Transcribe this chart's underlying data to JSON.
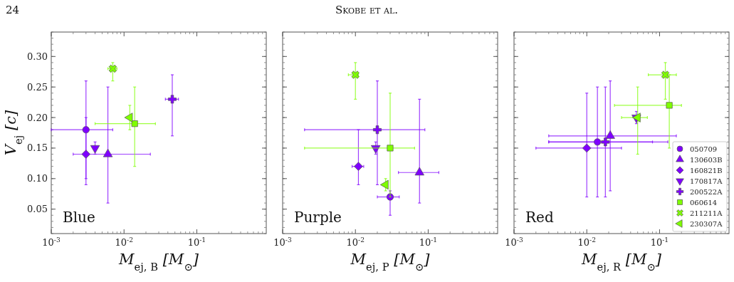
{
  "chart_data": [
    {
      "type": "scatter",
      "xlabel": "M$_{ej, B}$ [M$_{⊙}$]",
      "ylabel": "V$_{ej}$ [c]",
      "annotations": [
        "Blue",
        "24",
        "Skobe et al."
      ],
      "log": "x",
      "xlim": [
        0.001,
        0.9
      ],
      "ylim": [
        0.01,
        0.34
      ],
      "xticks": [
        {
          "value": 0.001,
          "label": "10$^{-3}$"
        },
        {
          "value": 0.01,
          "label": "10$^{-2}$"
        },
        {
          "value": 0.1,
          "label": "10$^{-1}$"
        }
      ],
      "yticks": [
        {
          "value": 0.05,
          "label": "0.05"
        },
        {
          "value": 0.1,
          "label": "0.10"
        },
        {
          "value": 0.15,
          "label": "0.15"
        },
        {
          "value": 0.2,
          "label": "0.20"
        },
        {
          "value": 0.25,
          "label": "0.25"
        },
        {
          "value": 0.3,
          "label": "0.30"
        }
      ],
      "series": [
        {
          "color": "#7f00ff",
          "marker": "circle",
          "x": [
            0.003
          ],
          "values": [
            0.18
          ],
          "errors": [
            [
              0.1,
              0.26
            ]
          ],
          "xerrors": [
            [
              0.001,
              0.007
            ]
          ]
        },
        {
          "color": "#7f00ff",
          "marker": "triangle",
          "x": [
            0.006
          ],
          "values": [
            0.14
          ],
          "errors": [
            [
              0.06,
              0.25
            ]
          ]
        },
        {
          "color": "#7f00ff",
          "marker": "diamond",
          "x": [
            0.003
          ],
          "values": [
            0.14
          ],
          "errors": [
            [
              0.09,
              0.2
            ]
          ],
          "xerrors": [
            [
              0.002,
              0.023
            ]
          ]
        },
        {
          "color": "#7f00ff",
          "marker": "triangle-down",
          "x": [
            0.004
          ],
          "values": [
            0.15
          ],
          "errors": [
            [
              0.14,
              0.16
            ]
          ]
        },
        {
          "color": "#7f00ff",
          "marker": "cross",
          "x": [
            0.046
          ],
          "values": [
            0.23
          ],
          "errors": [
            [
              0.17,
              0.27
            ]
          ],
          "xerrors": [
            [
              0.037,
              0.056
            ]
          ]
        },
        {
          "color": "#7fff00",
          "marker": "square",
          "x": [
            0.014
          ],
          "values": [
            0.19
          ],
          "errors": [
            [
              0.12,
              0.25
            ]
          ],
          "xerrors": [
            [
              0.004,
              0.027
            ]
          ]
        },
        {
          "color": "#7fff00",
          "marker": "x",
          "x": [
            0.007
          ],
          "values": [
            0.28
          ],
          "errors": [
            [
              0.26,
              0.29
            ]
          ],
          "xerrors": [
            [
              0.006,
              0.008
            ]
          ]
        },
        {
          "color": "#7fff00",
          "marker": "triangle-left",
          "x": [
            0.012
          ],
          "values": [
            0.2
          ],
          "errors": [
            [
              0.18,
              0.22
            ]
          ]
        }
      ]
    },
    {
      "type": "scatter",
      "xlabel": "M$_{ej, P}$ [M$_{⊙}$]",
      "annotations": [
        "Purple"
      ],
      "log": "x",
      "tick_labels": "x",
      "xlim": [
        0.001,
        0.9
      ],
      "ylim": [
        0.01,
        0.34
      ],
      "xticks": [
        {
          "value": 0.001,
          "label": "10$^{-3}$"
        },
        {
          "value": 0.01,
          "label": "10$^{-2}$"
        },
        {
          "value": 0.1,
          "label": "10$^{-1}$"
        }
      ],
      "yticks": [
        0.05,
        0.1,
        0.15,
        0.2,
        0.25,
        0.3
      ],
      "series": [
        {
          "color": "#7f00ff",
          "marker": "circle",
          "x": [
            0.03
          ],
          "values": [
            0.07
          ],
          "errors": [
            [
              0.04,
              0.08
            ]
          ],
          "xerrors": [
            [
              0.02,
              0.04
            ]
          ]
        },
        {
          "color": "#7f00ff",
          "marker": "triangle",
          "x": [
            0.076
          ],
          "values": [
            0.11
          ],
          "errors": [
            [
              0.06,
              0.23
            ]
          ],
          "xerrors": [
            [
              0.039,
              0.14
            ]
          ]
        },
        {
          "color": "#7f00ff",
          "marker": "diamond",
          "x": [
            0.011
          ],
          "values": [
            0.12
          ],
          "errors": [
            [
              0.09,
              0.18
            ]
          ],
          "xerrors": [
            [
              0.009,
              0.013
            ]
          ]
        },
        {
          "color": "#7f00ff",
          "marker": "triangle-down",
          "x": [
            0.019
          ],
          "values": [
            0.15
          ],
          "errors": [
            [
              0.14,
              0.16
            ]
          ]
        },
        {
          "color": "#7f00ff",
          "marker": "cross",
          "x": [
            0.02
          ],
          "values": [
            0.18
          ],
          "errors": [
            [
              0.09,
              0.26
            ]
          ],
          "xerrors": [
            [
              0.002,
              0.09
            ]
          ]
        },
        {
          "color": "#7fff00",
          "marker": "square",
          "x": [
            0.03
          ],
          "values": [
            0.15
          ],
          "errors": [
            [
              0.07,
              0.24
            ]
          ],
          "xerrors": [
            [
              0.002,
              0.065
            ]
          ]
        },
        {
          "color": "#7fff00",
          "marker": "x",
          "x": [
            0.01
          ],
          "values": [
            0.27
          ],
          "errors": [
            [
              0.23,
              0.29
            ]
          ],
          "xerrors": [
            [
              0.008,
              0.011
            ]
          ]
        },
        {
          "color": "#7fff00",
          "marker": "triangle-left",
          "x": [
            0.026
          ],
          "values": [
            0.09
          ],
          "errors": [
            [
              0.08,
              0.1
            ]
          ]
        }
      ]
    },
    {
      "type": "scatter",
      "xlabel": "M$_{ej, R}$ [M$_{⊙}$]",
      "annotations": [
        "Red"
      ],
      "log": "x",
      "tick_labels": "x",
      "legend": "bottom right",
      "xlim": [
        0.001,
        0.9
      ],
      "ylim": [
        0.01,
        0.34
      ],
      "xticks": [
        {
          "value": 0.001,
          "label": "10$^{-3}$"
        },
        {
          "value": 0.01,
          "label": "10$^{-2}$"
        },
        {
          "value": 0.1,
          "label": "10$^{-1}$"
        }
      ],
      "yticks": [
        0.05,
        0.1,
        0.15,
        0.2,
        0.25,
        0.3
      ],
      "series": [
        {
          "name": "050709",
          "color": "#7f00ff",
          "marker": "circle",
          "x": [
            0.014
          ],
          "values": [
            0.16
          ],
          "errors": [
            [
              0.07,
              0.25
            ]
          ],
          "xerrors": [
            [
              0.003,
              0.08
            ]
          ]
        },
        {
          "name": "130603B",
          "color": "#7f00ff",
          "marker": "triangle",
          "x": [
            0.021
          ],
          "values": [
            0.17
          ],
          "errors": [
            [
              0.08,
              0.26
            ]
          ],
          "xerrors": [
            [
              0.003,
              0.17
            ]
          ]
        },
        {
          "name": "160821B",
          "color": "#7f00ff",
          "marker": "diamond",
          "x": [
            0.01
          ],
          "values": [
            0.15
          ],
          "errors": [
            [
              0.07,
              0.24
            ]
          ],
          "xerrors": [
            [
              0.002,
              0.03
            ]
          ]
        },
        {
          "name": "170817A",
          "color": "#7f00ff",
          "marker": "triangle-down",
          "x": [
            0.048
          ],
          "values": [
            0.2
          ],
          "errors": [
            [
              0.19,
              0.21
            ]
          ]
        },
        {
          "name": "200522A",
          "color": "#7f00ff",
          "marker": "cross",
          "x": [
            0.018
          ],
          "values": [
            0.16
          ],
          "errors": [
            [
              0.07,
              0.25
            ]
          ],
          "xerrors": [
            [
              0.003,
              0.13
            ]
          ]
        },
        {
          "name": "060614",
          "color": "#7fff00",
          "marker": "square",
          "x": [
            0.136
          ],
          "values": [
            0.22
          ],
          "errors": [
            [
              0.15,
              0.27
            ]
          ],
          "xerrors": [
            [
              0.024,
              0.2
            ]
          ]
        },
        {
          "name": "211211A",
          "color": "#7fff00",
          "marker": "x",
          "x": [
            0.12
          ],
          "values": [
            0.27
          ],
          "errors": [
            [
              0.23,
              0.29
            ]
          ],
          "xerrors": [
            [
              0.07,
              0.17
            ]
          ]
        },
        {
          "name": "230307A",
          "color": "#7fff00",
          "marker": "triangle-left",
          "x": [
            0.05
          ],
          "values": [
            0.2
          ],
          "errors": [
            [
              0.14,
              0.25
            ]
          ],
          "xerrors": [
            [
              0.03,
              0.068
            ]
          ]
        }
      ]
    }
  ]
}
